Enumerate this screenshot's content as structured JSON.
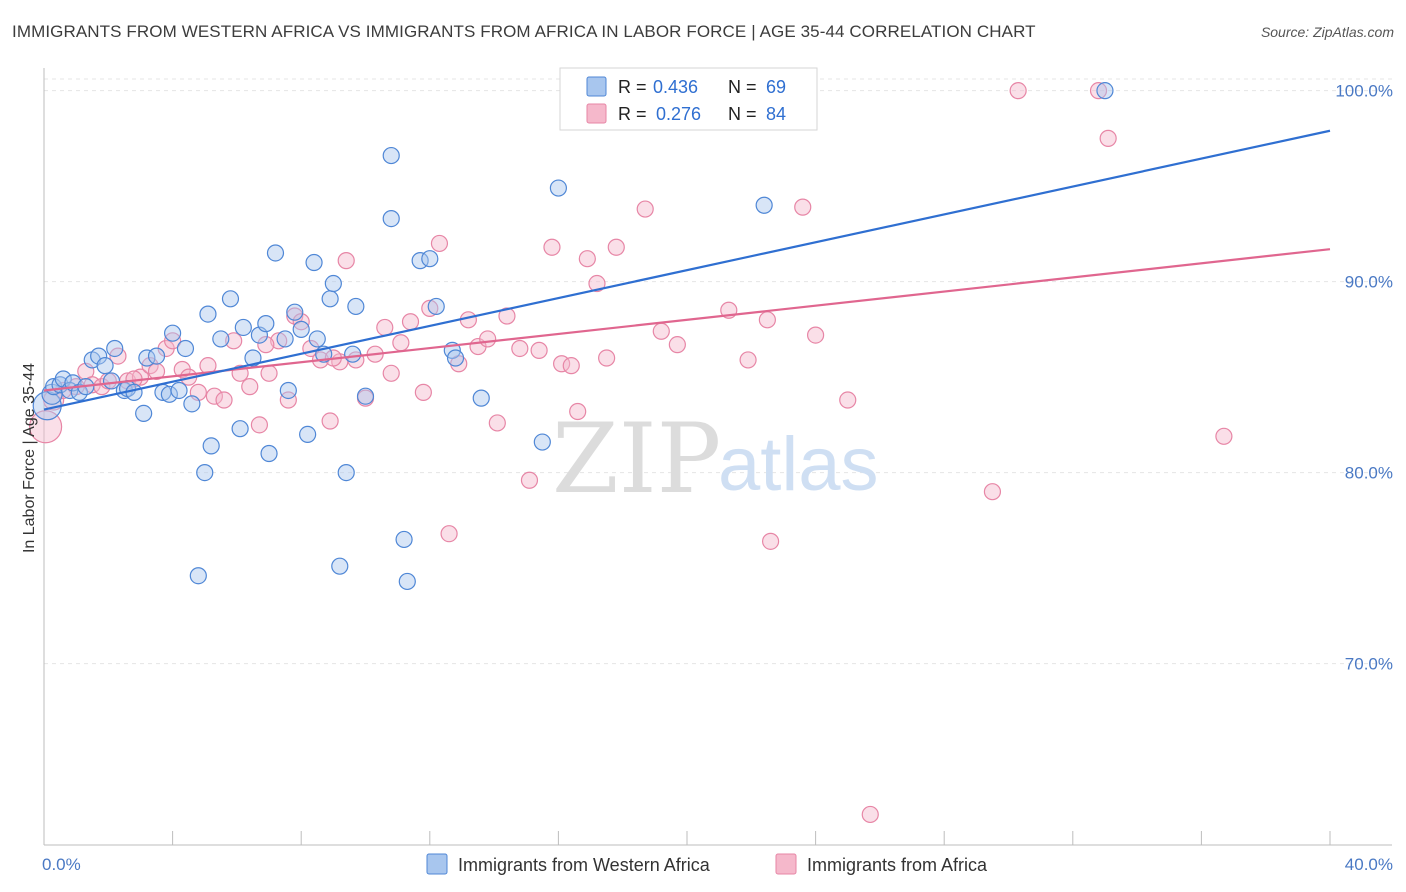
{
  "header": {
    "title": "IMMIGRANTS FROM WESTERN AFRICA VS IMMIGRANTS FROM AFRICA IN LABOR FORCE | AGE 35-44 CORRELATION CHART",
    "source": "Source: ZipAtlas.com"
  },
  "watermark": {
    "zip": "ZIP",
    "atlas": "atlas"
  },
  "colors": {
    "blue_fill": "#a8c6ee",
    "blue_stroke": "#4f87d6",
    "blue_line": "#2f6fd1",
    "pink_fill": "#f5b8cb",
    "pink_stroke": "#e786a6",
    "pink_line": "#e0668f",
    "axis_text": "#4a79c4",
    "grid": "#e5e5e5"
  },
  "legend_top": {
    "rows": [
      {
        "r_label": "R = ",
        "r_value": "0.436",
        "n_label": "N = ",
        "n_value": "69"
      },
      {
        "r_label": "R = ",
        "r_value": "0.276",
        "n_label": "N = ",
        "n_value": "84"
      }
    ]
  },
  "legend_bottom": {
    "items": [
      {
        "label": "Immigrants from Western Africa"
      },
      {
        "label": "Immigrants from Africa"
      }
    ]
  },
  "chart_data": {
    "type": "scatter",
    "title": "IMMIGRANTS FROM WESTERN AFRICA VS IMMIGRANTS FROM AFRICA IN LABOR FORCE | AGE 35-44 CORRELATION CHART",
    "xlabel": "",
    "ylabel": "In Labor Force | Age 35-44",
    "xlim": [
      0,
      40
    ],
    "ylim": [
      60.5,
      101.5
    ],
    "x_tick_labels": [
      "0.0%",
      "40.0%"
    ],
    "y_ticks": [
      70,
      80,
      90,
      100
    ],
    "y_tick_labels": [
      "70.0%",
      "80.0%",
      "90.0%",
      "100.0%"
    ],
    "grid": true,
    "legend_position": "top-center",
    "series": [
      {
        "name": "Immigrants from Western Africa",
        "r": 0.436,
        "n": 69,
        "trend": {
          "x0": 0.0,
          "y0": 83.3,
          "x1": 40.0,
          "y1": 97.9
        },
        "points": [
          [
            0.1,
            83.5,
            14
          ],
          [
            0.25,
            84.1,
            10
          ],
          [
            0.3,
            84.5,
            8
          ],
          [
            0.5,
            84.6,
            8
          ],
          [
            0.6,
            84.9,
            8
          ],
          [
            0.8,
            84.3,
            8
          ],
          [
            0.9,
            84.7,
            8
          ],
          [
            1.1,
            84.2,
            8
          ],
          [
            1.5,
            85.9,
            8
          ],
          [
            1.7,
            86.1,
            8
          ],
          [
            1.9,
            85.6,
            8
          ],
          [
            2.2,
            86.5,
            8
          ],
          [
            2.1,
            84.8,
            8
          ],
          [
            2.5,
            84.3,
            8
          ],
          [
            2.6,
            84.4,
            8
          ],
          [
            2.8,
            84.2,
            8
          ],
          [
            3.2,
            86.0,
            8
          ],
          [
            3.1,
            83.1,
            8
          ],
          [
            3.5,
            86.1,
            8
          ],
          [
            3.7,
            84.2,
            8
          ],
          [
            3.9,
            84.1,
            8
          ],
          [
            4.0,
            87.3,
            8
          ],
          [
            4.2,
            84.3,
            8
          ],
          [
            4.4,
            86.5,
            8
          ],
          [
            4.6,
            83.6,
            8
          ],
          [
            5.1,
            88.3,
            8
          ],
          [
            5.2,
            81.4,
            8
          ],
          [
            5.0,
            80.0,
            8
          ],
          [
            4.8,
            74.6,
            8
          ],
          [
            5.5,
            87.0,
            8
          ],
          [
            5.8,
            89.1,
            8
          ],
          [
            6.1,
            82.3,
            8
          ],
          [
            6.2,
            87.6,
            8
          ],
          [
            6.5,
            86.0,
            8
          ],
          [
            6.7,
            87.2,
            8
          ],
          [
            6.9,
            87.8,
            8
          ],
          [
            7.0,
            81.0,
            8
          ],
          [
            7.2,
            91.5,
            8
          ],
          [
            7.5,
            87.0,
            8
          ],
          [
            7.6,
            84.3,
            8
          ],
          [
            7.8,
            88.4,
            8
          ],
          [
            8.0,
            87.5,
            8
          ],
          [
            8.2,
            82.0,
            8
          ],
          [
            8.4,
            91.0,
            8
          ],
          [
            8.5,
            87.0,
            8
          ],
          [
            8.7,
            86.2,
            8
          ],
          [
            8.9,
            89.1,
            8
          ],
          [
            9.0,
            89.9,
            8
          ],
          [
            9.2,
            75.1,
            8
          ],
          [
            9.4,
            80.0,
            8
          ],
          [
            9.6,
            86.2,
            8
          ],
          [
            9.7,
            88.7,
            8
          ],
          [
            10.0,
            84.0,
            8
          ],
          [
            10.8,
            96.6,
            8
          ],
          [
            10.8,
            93.3,
            8
          ],
          [
            11.2,
            76.5,
            8
          ],
          [
            11.3,
            74.3,
            8
          ],
          [
            11.7,
            91.1,
            8
          ],
          [
            12.0,
            91.2,
            8
          ],
          [
            12.2,
            88.7,
            8
          ],
          [
            12.7,
            86.4,
            8
          ],
          [
            12.8,
            86.0,
            8
          ],
          [
            13.6,
            83.9,
            8
          ],
          [
            15.5,
            81.6,
            8
          ],
          [
            16.0,
            94.9,
            8
          ],
          [
            19.7,
            100.0,
            8
          ],
          [
            22.4,
            94.0,
            8
          ],
          [
            33.0,
            100.0,
            8
          ],
          [
            1.3,
            84.5,
            8
          ]
        ]
      },
      {
        "name": "Immigrants from Africa",
        "r": 0.276,
        "n": 84,
        "trend": {
          "x0": 0.0,
          "y0": 84.3,
          "x1": 40.0,
          "y1": 91.7
        },
        "points": [
          [
            0.05,
            82.4,
            16
          ],
          [
            0.3,
            83.8,
            10
          ],
          [
            0.6,
            84.3,
            8
          ],
          [
            1.0,
            84.5,
            8
          ],
          [
            1.3,
            85.3,
            8
          ],
          [
            1.5,
            84.6,
            8
          ],
          [
            1.8,
            84.5,
            8
          ],
          [
            2.0,
            84.8,
            8
          ],
          [
            2.3,
            86.1,
            8
          ],
          [
            2.6,
            84.8,
            8
          ],
          [
            3.0,
            85.0,
            8
          ],
          [
            3.3,
            85.6,
            8
          ],
          [
            3.5,
            85.3,
            8
          ],
          [
            3.8,
            86.5,
            8
          ],
          [
            4.0,
            86.9,
            8
          ],
          [
            4.3,
            85.4,
            8
          ],
          [
            4.5,
            85.0,
            8
          ],
          [
            4.8,
            84.2,
            8
          ],
          [
            5.1,
            85.6,
            8
          ],
          [
            5.3,
            84.0,
            8
          ],
          [
            5.6,
            83.8,
            8
          ],
          [
            5.9,
            86.9,
            8
          ],
          [
            6.1,
            85.2,
            8
          ],
          [
            6.4,
            84.5,
            8
          ],
          [
            6.7,
            82.5,
            8
          ],
          [
            7.0,
            85.2,
            8
          ],
          [
            7.3,
            86.9,
            8
          ],
          [
            7.6,
            83.8,
            8
          ],
          [
            7.8,
            88.2,
            8
          ],
          [
            8.0,
            87.9,
            8
          ],
          [
            8.3,
            86.5,
            8
          ],
          [
            8.6,
            85.9,
            8
          ],
          [
            8.9,
            82.7,
            8
          ],
          [
            9.2,
            85.8,
            8
          ],
          [
            9.4,
            91.1,
            8
          ],
          [
            9.7,
            85.9,
            8
          ],
          [
            10.0,
            83.9,
            8
          ],
          [
            10.3,
            86.2,
            8
          ],
          [
            10.6,
            87.6,
            8
          ],
          [
            10.8,
            85.2,
            8
          ],
          [
            11.1,
            86.8,
            8
          ],
          [
            11.4,
            87.9,
            8
          ],
          [
            11.8,
            84.2,
            8
          ],
          [
            12.0,
            88.6,
            8
          ],
          [
            12.3,
            92.0,
            8
          ],
          [
            12.6,
            76.8,
            8
          ],
          [
            12.9,
            85.7,
            8
          ],
          [
            13.2,
            88.0,
            8
          ],
          [
            13.5,
            86.6,
            8
          ],
          [
            13.8,
            87.0,
            8
          ],
          [
            14.1,
            82.6,
            8
          ],
          [
            14.4,
            88.2,
            8
          ],
          [
            14.8,
            86.5,
            8
          ],
          [
            15.1,
            79.6,
            8
          ],
          [
            15.4,
            86.4,
            8
          ],
          [
            15.8,
            91.8,
            8
          ],
          [
            16.1,
            85.7,
            8
          ],
          [
            16.4,
            85.6,
            8
          ],
          [
            16.6,
            83.2,
            8
          ],
          [
            16.9,
            91.2,
            8
          ],
          [
            17.2,
            89.9,
            8
          ],
          [
            17.5,
            86.0,
            8
          ],
          [
            17.8,
            100.0,
            8
          ],
          [
            17.8,
            91.8,
            8
          ],
          [
            18.7,
            93.8,
            8
          ],
          [
            19.2,
            87.4,
            8
          ],
          [
            19.7,
            86.7,
            8
          ],
          [
            20.3,
            100.0,
            8
          ],
          [
            21.3,
            88.5,
            8
          ],
          [
            21.9,
            85.9,
            8
          ],
          [
            22.5,
            88.0,
            8
          ],
          [
            22.6,
            76.4,
            8
          ],
          [
            23.6,
            93.9,
            8
          ],
          [
            24.0,
            87.2,
            8
          ],
          [
            25.0,
            83.8,
            8
          ],
          [
            25.7,
            62.1,
            8
          ],
          [
            29.5,
            79.0,
            8
          ],
          [
            30.3,
            100.0,
            8
          ],
          [
            32.8,
            100.0,
            8
          ],
          [
            33.1,
            97.5,
            8
          ],
          [
            36.7,
            81.9,
            8
          ],
          [
            2.8,
            84.9,
            8
          ],
          [
            6.9,
            86.7,
            8
          ],
          [
            9.0,
            86.0,
            8
          ]
        ]
      }
    ]
  }
}
